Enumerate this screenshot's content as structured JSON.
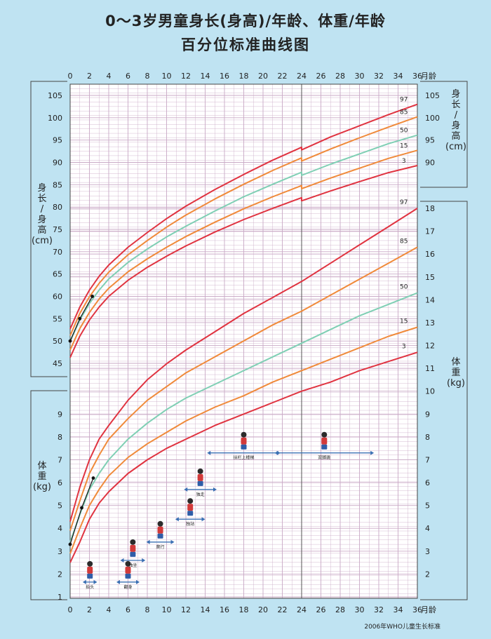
{
  "title_line1": "0～3岁男童身长(身高)/年龄、体重/年龄",
  "title_line2": "百分位标准曲线图",
  "footer": "2006年WHO儿童生长标准",
  "colors": {
    "background": "#bfe3f2",
    "grid": "#c9a9c6",
    "p3": "#e03340",
    "p15": "#f08a3a",
    "p50": "#7fcfb4",
    "p85": "#f08a3a",
    "p97": "#e03340",
    "points": "#111111",
    "arrow": "#3a6fb3"
  },
  "chart_data": {
    "type": "line",
    "x": [
      0,
      2,
      4,
      6,
      8,
      10,
      12,
      14,
      16,
      18,
      20,
      22,
      24,
      26,
      28,
      30,
      32,
      34,
      36
    ],
    "x_tick_labels": [
      "0",
      "2",
      "4",
      "6",
      "8",
      "10",
      "12",
      "14",
      "16",
      "18",
      "20",
      "22",
      "24",
      "26",
      "28",
      "30",
      "32",
      "34",
      "36"
    ],
    "x_unit": "月龄",
    "xlim": [
      0,
      36
    ],
    "height": {
      "axis_label_left": [
        "身",
        "长",
        "/",
        "身",
        "高",
        "(cm)"
      ],
      "axis_label_right": [
        "身",
        "长",
        "/",
        "身",
        "高",
        "(cm)"
      ],
      "left_ticks": [
        45,
        50,
        55,
        60,
        65,
        70,
        75,
        80,
        85,
        90,
        95,
        100,
        105
      ],
      "right_ticks": [
        90,
        95,
        100,
        105
      ],
      "ylim": [
        42,
        108
      ],
      "x_months": [
        0,
        1,
        2,
        3,
        4,
        6,
        8,
        10,
        12,
        15,
        18,
        21,
        24,
        24,
        27,
        30,
        33,
        36
      ],
      "series": [
        {
          "name": "97",
          "values": [
            52.7,
            57.6,
            61.4,
            64.5,
            67.0,
            71.0,
            74.3,
            77.4,
            80.2,
            83.9,
            87.3,
            90.5,
            93.4,
            92.8,
            95.7,
            98.2,
            100.7,
            103.0
          ]
        },
        {
          "name": "85",
          "values": [
            51.2,
            56.2,
            59.9,
            62.9,
            65.4,
            69.3,
            72.5,
            75.5,
            78.2,
            81.8,
            85.1,
            88.2,
            91.0,
            90.3,
            93.0,
            95.5,
            97.9,
            100.2
          ]
        },
        {
          "name": "50",
          "values": [
            49.9,
            54.7,
            58.4,
            61.4,
            63.9,
            67.6,
            70.6,
            73.3,
            75.7,
            79.1,
            82.3,
            85.1,
            87.8,
            87.1,
            89.6,
            91.9,
            94.2,
            96.1
          ]
        },
        {
          "name": "15",
          "values": [
            48.0,
            52.8,
            56.4,
            59.4,
            61.8,
            65.5,
            68.4,
            71.0,
            73.4,
            76.6,
            79.6,
            82.3,
            84.8,
            84.1,
            86.5,
            88.7,
            90.9,
            92.7
          ]
        },
        {
          "name": "3",
          "values": [
            46.3,
            51.1,
            54.7,
            57.6,
            60.0,
            63.6,
            66.5,
            69.0,
            71.3,
            74.4,
            77.2,
            79.7,
            82.1,
            81.4,
            83.6,
            85.7,
            87.7,
            89.3
          ]
        }
      ],
      "child_points": {
        "x": [
          0,
          1,
          2.3
        ],
        "y": [
          50.0,
          55.0,
          60.0
        ]
      }
    },
    "weight": {
      "axis_label_left": [
        "体",
        "重",
        "(kg)"
      ],
      "axis_label_right": [
        "体",
        "重",
        "(kg)"
      ],
      "left_ticks": [
        1,
        2,
        3,
        4,
        5,
        6,
        7,
        8,
        9
      ],
      "right_ticks": [
        2,
        3,
        4,
        5,
        6,
        7,
        8,
        9,
        10,
        11,
        12,
        13,
        14,
        15,
        16,
        17,
        18
      ],
      "ylim": [
        1,
        18.6
      ],
      "x_months": [
        0,
        1,
        2,
        3,
        4,
        6,
        8,
        10,
        12,
        15,
        18,
        21,
        24,
        27,
        30,
        33,
        36
      ],
      "series": [
        {
          "name": "97",
          "values": [
            4.3,
            5.8,
            7.0,
            7.9,
            8.5,
            9.6,
            10.5,
            11.2,
            11.8,
            12.6,
            13.4,
            14.1,
            14.8,
            15.6,
            16.4,
            17.2,
            18.0
          ]
        },
        {
          "name": "85",
          "values": [
            3.9,
            5.2,
            6.4,
            7.2,
            7.9,
            8.8,
            9.6,
            10.2,
            10.8,
            11.5,
            12.2,
            12.9,
            13.5,
            14.2,
            14.9,
            15.6,
            16.3
          ]
        },
        {
          "name": "50",
          "values": [
            3.4,
            4.6,
            5.7,
            6.4,
            7.0,
            7.9,
            8.6,
            9.2,
            9.7,
            10.3,
            10.9,
            11.5,
            12.1,
            12.7,
            13.3,
            13.8,
            14.3
          ]
        },
        {
          "name": "15",
          "values": [
            2.9,
            4.0,
            5.0,
            5.7,
            6.3,
            7.1,
            7.7,
            8.2,
            8.7,
            9.3,
            9.8,
            10.4,
            10.9,
            11.4,
            11.9,
            12.4,
            12.8
          ]
        },
        {
          "name": "3",
          "values": [
            2.5,
            3.4,
            4.4,
            5.1,
            5.6,
            6.4,
            7.0,
            7.5,
            7.9,
            8.5,
            9.0,
            9.5,
            10.0,
            10.4,
            10.9,
            11.3,
            11.7
          ]
        }
      ],
      "child_points": {
        "x": [
          0,
          1.2,
          2.4
        ],
        "y": [
          3.3,
          4.9,
          6.2
        ]
      }
    },
    "milestones": [
      {
        "label": "抬头",
        "x_start": 1.3,
        "x_end": 2.8,
        "y": 1.65
      },
      {
        "label": "翻身",
        "x_start": 4.8,
        "x_end": 7.2,
        "y": 1.65
      },
      {
        "label": "独坐",
        "x_start": 5.2,
        "x_end": 7.8,
        "y": 2.6
      },
      {
        "label": "爬行",
        "x_start": 7.9,
        "x_end": 10.8,
        "y": 3.4
      },
      {
        "label": "独站",
        "x_start": 10.9,
        "x_end": 14.0,
        "y": 4.4
      },
      {
        "label": "独走",
        "x_start": 11.8,
        "x_end": 15.2,
        "y": 5.7
      },
      {
        "label": "扶栏上楼梯",
        "x_start": 14.2,
        "x_end": 21.8,
        "y": 7.3
      },
      {
        "label": "双脚跳",
        "x_start": 21.2,
        "x_end": 31.5,
        "y": 7.3
      }
    ]
  }
}
